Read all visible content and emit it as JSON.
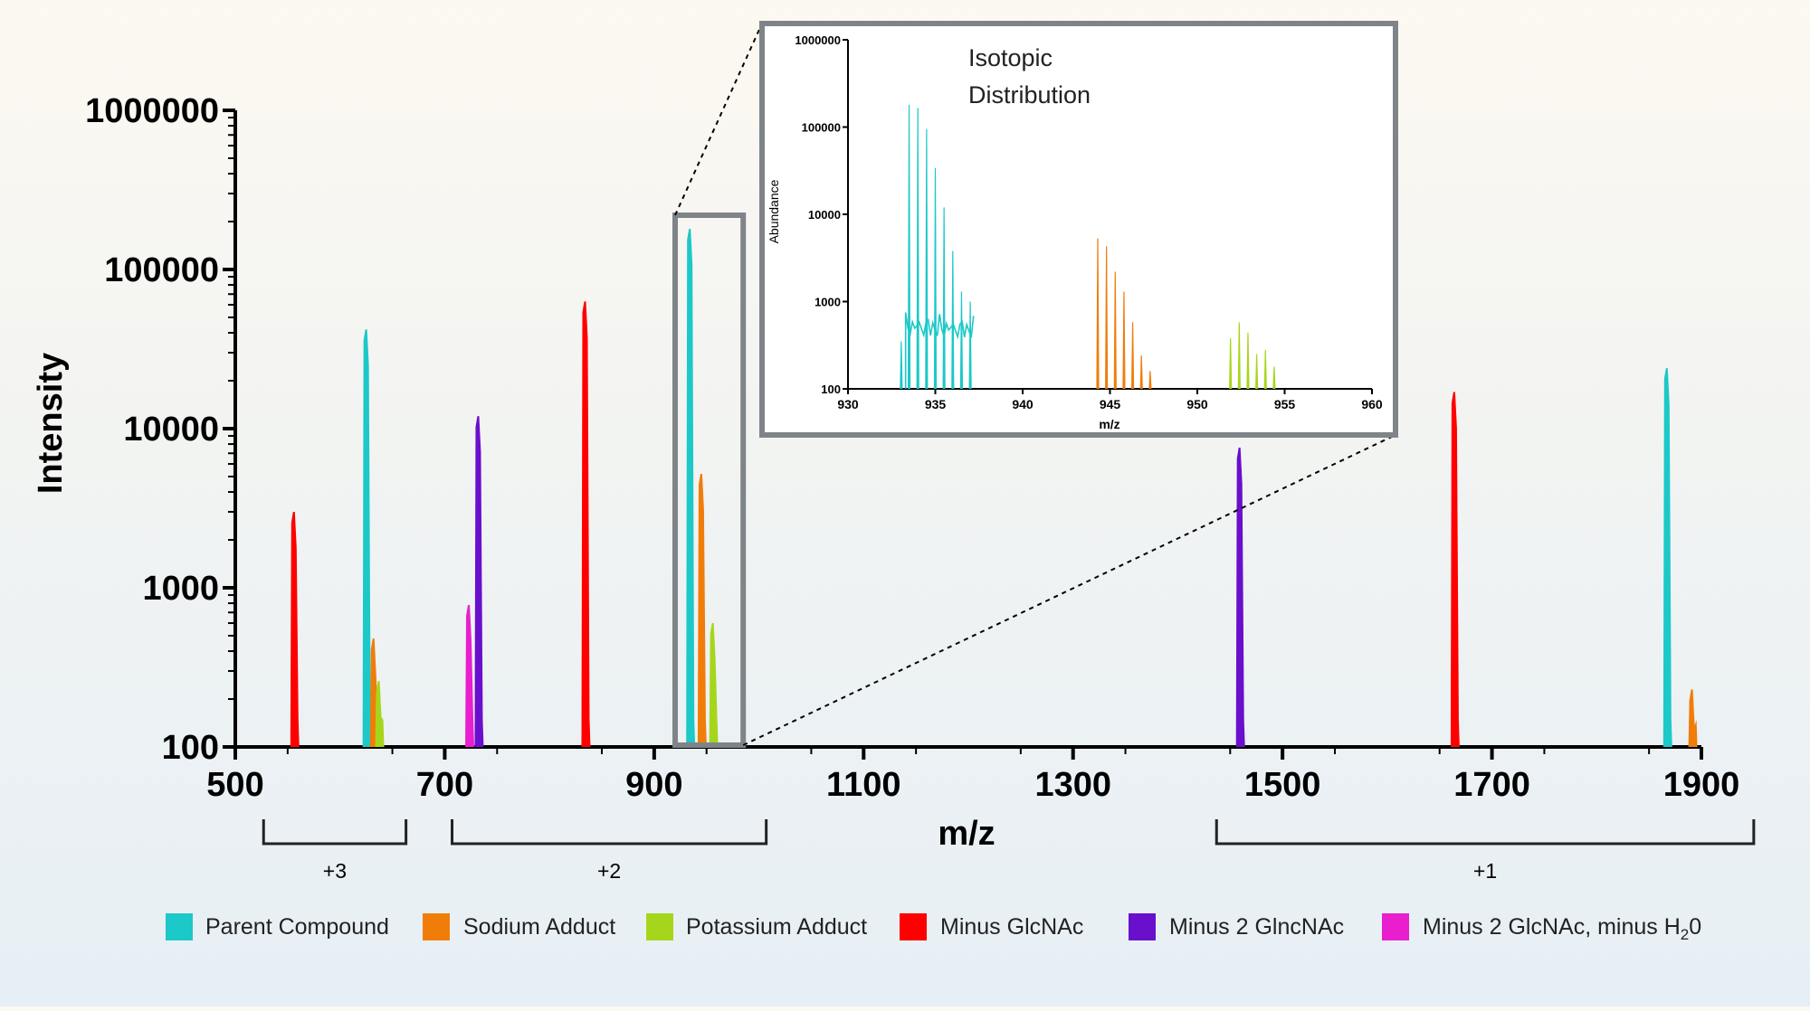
{
  "chart_data": [
    {
      "type": "spectrum",
      "xlabel": "m/z",
      "ylabel": "Intensity",
      "xlim": [
        500,
        1900
      ],
      "ylim": [
        100,
        1000000
      ],
      "yscale": "log",
      "x_ticks": [
        500,
        700,
        900,
        1100,
        1300,
        1500,
        1700,
        1900
      ],
      "y_ticks": [
        100,
        1000,
        10000,
        100000,
        1000000
      ],
      "y_tick_labels": [
        "100",
        "1000",
        "10000",
        "100000",
        "1000000"
      ],
      "series": [
        {
          "name": "Parent Compound",
          "color": "#1cc8c8",
          "peaks": [
            [
              625,
              42000
            ],
            [
              934,
              180000
            ],
            [
              1867,
              24000
            ]
          ]
        },
        {
          "name": "Sodium Adduct",
          "color": "#f07d0a",
          "peaks": [
            [
              632,
              480
            ],
            [
              945,
              5200
            ],
            [
              1891,
              230
            ]
          ]
        },
        {
          "name": "Potassium Adduct",
          "color": "#a6d61c",
          "peaks": [
            [
              637,
              260
            ],
            [
              956,
              600
            ]
          ]
        },
        {
          "name": "Minus GlcNAc",
          "color": "#ff0000",
          "peaks": [
            [
              556,
              3000
            ],
            [
              834,
              63000
            ],
            [
              1664,
              17000
            ]
          ]
        },
        {
          "name": "Minus 2 GlncNAc",
          "color": "#6a0fcc",
          "peaks": [
            [
              732,
              12000
            ],
            [
              1459,
              7600
            ]
          ]
        },
        {
          "name": "Minus 2 GlcNAc, minus H2O",
          "color": "#e81ecf",
          "peaks": [
            [
              723,
              780
            ]
          ]
        }
      ],
      "charge_groups": [
        {
          "label": "+3",
          "range": [
            527,
            663
          ]
        },
        {
          "label": "+2",
          "range": [
            707,
            1007
          ]
        },
        {
          "label": "+1",
          "range": [
            1437,
            1950
          ]
        }
      ],
      "zoom_range": [
        920,
        985
      ]
    },
    {
      "type": "spectrum",
      "title": "Isotopic Distribution",
      "title_lines": [
        "Isotopic",
        "Distribution"
      ],
      "xlabel": "m/z",
      "ylabel": "Abundance",
      "xlim": [
        930,
        960
      ],
      "ylim": [
        100,
        1000000
      ],
      "yscale": "log",
      "x_ticks": [
        930,
        935,
        940,
        945,
        950,
        955,
        960
      ],
      "y_ticks": [
        100,
        1000,
        10000,
        100000,
        1000000
      ],
      "y_tick_labels": [
        "100",
        "1000",
        "10000",
        "100000",
        "1000000"
      ],
      "series": [
        {
          "name": "Parent Compound",
          "color": "#1cc8c8",
          "peaks": [
            [
              933.05,
              350
            ],
            [
              933.5,
              180000
            ],
            [
              934.0,
              165000
            ],
            [
              934.5,
              95000
            ],
            [
              935.0,
              34000
            ],
            [
              935.5,
              12000
            ],
            [
              936.0,
              3800
            ],
            [
              936.5,
              1300
            ],
            [
              937.0,
              1000
            ]
          ]
        },
        {
          "name": "Sodium Adduct",
          "color": "#f07d0a",
          "peaks": [
            [
              944.3,
              5300
            ],
            [
              944.8,
              4300
            ],
            [
              945.3,
              2200
            ],
            [
              945.8,
              1300
            ],
            [
              946.3,
              580
            ],
            [
              946.8,
              240
            ],
            [
              947.3,
              160
            ]
          ]
        },
        {
          "name": "Potassium Adduct",
          "color": "#a6d61c",
          "peaks": [
            [
              951.9,
              380
            ],
            [
              952.4,
              580
            ],
            [
              952.9,
              440
            ],
            [
              953.4,
              250
            ],
            [
              953.9,
              280
            ],
            [
              954.4,
              180
            ]
          ]
        }
      ]
    }
  ],
  "legend_items": [
    {
      "label": "Parent Compound",
      "color": "#1cc8c8"
    },
    {
      "label": "Sodium Adduct",
      "color": "#f07d0a"
    },
    {
      "label": "Potassium Adduct",
      "color": "#a6d61c"
    },
    {
      "label": "Minus GlcNAc",
      "color": "#ff0000"
    },
    {
      "label": "Minus 2 GlncNAc",
      "color": "#6a0fcc"
    },
    {
      "label": "Minus 2 GlcNAc, minus H",
      "sub": "2",
      "tail": "0",
      "color": "#e81ecf"
    }
  ]
}
